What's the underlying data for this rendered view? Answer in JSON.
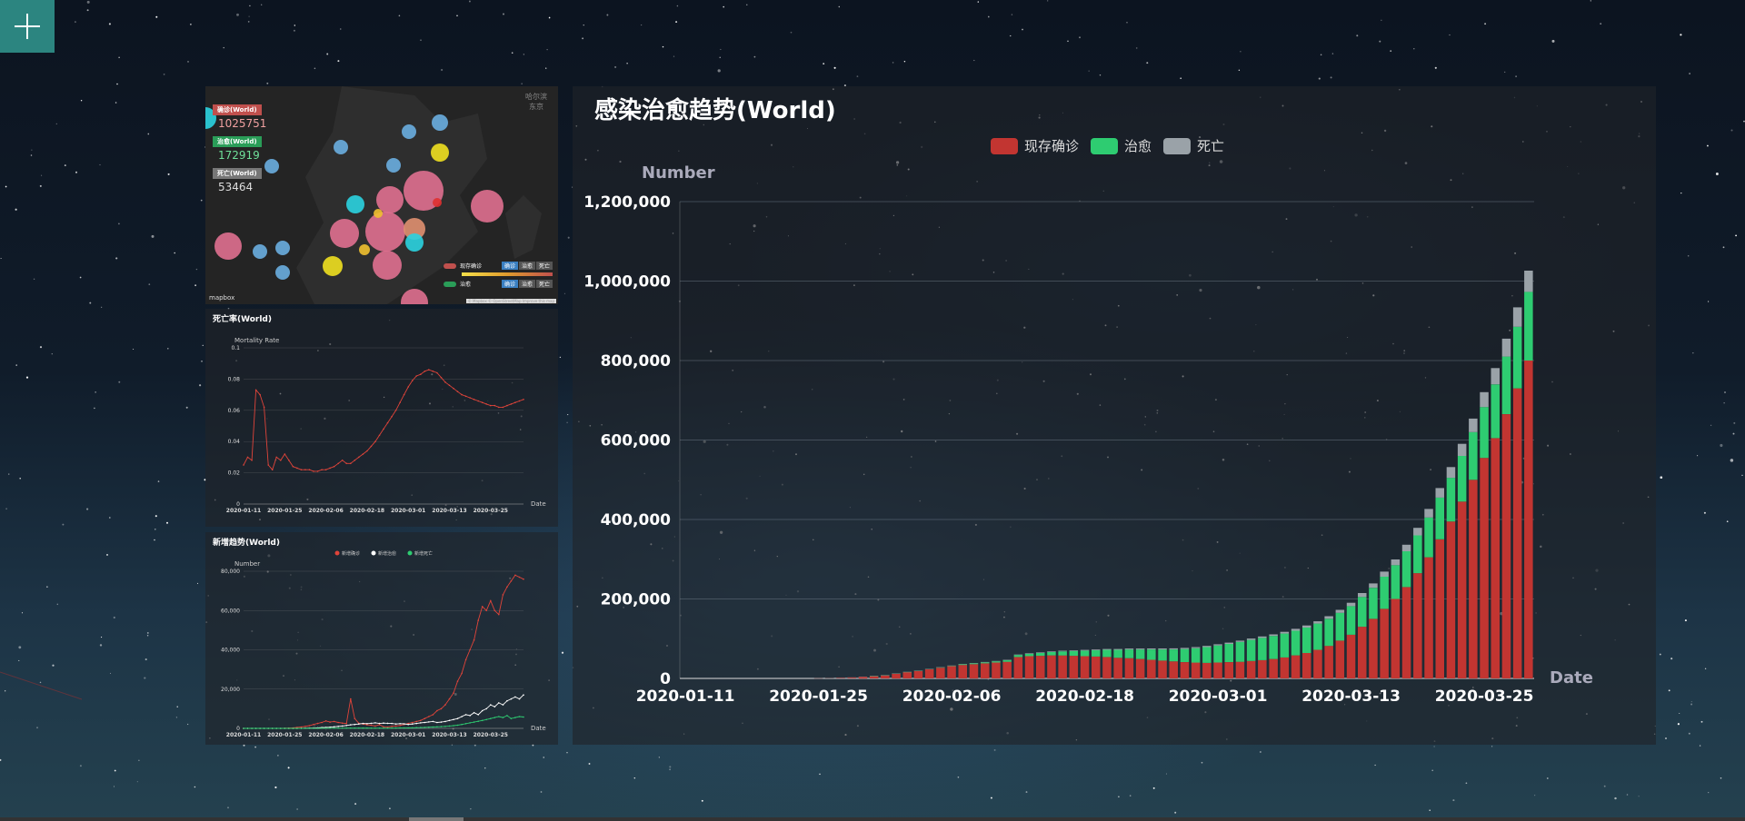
{
  "toolbar": {
    "add_icon": "plus-icon"
  },
  "map": {
    "confirmed_label": "确诊(World)",
    "confirmed_value": "1025751",
    "recovered_label": "治愈(World)",
    "recovered_value": "172919",
    "deaths_label": "死亡(World)",
    "deaths_value": "53464",
    "corner_text": [
      "哈尔滨",
      "东京"
    ],
    "attribution": "mapbox",
    "credits": "© Mapbox © OpenStreetMap  Improve this map",
    "legend_labels": [
      "现存确诊",
      "治愈",
      "死亡"
    ],
    "legend_buttons": [
      "确诊",
      "治愈",
      "死亡"
    ],
    "colors": {
      "confirmed": "#c0504d",
      "recovered": "#2a9d58",
      "deaths": "#9aa2a8"
    }
  },
  "mortality": {
    "title": "死亡率(World)",
    "chart_data": {
      "type": "line",
      "ylabel": "Mortality Rate",
      "xlabel": "Date",
      "ylim": [
        0,
        0.1
      ],
      "y_ticks": [
        "0",
        "0.02",
        "0.04",
        "0.06",
        "0.08",
        "0.1"
      ],
      "x_ticks": [
        "2020-01-11",
        "2020-01-25",
        "2020-02-06",
        "2020-02-18",
        "2020-03-01",
        "2020-03-13",
        "2020-03-25"
      ],
      "color": "#e0443a",
      "values": [
        0.025,
        0.03,
        0.028,
        0.073,
        0.07,
        0.062,
        0.025,
        0.022,
        0.03,
        0.028,
        0.032,
        0.028,
        0.024,
        0.023,
        0.022,
        0.022,
        0.022,
        0.021,
        0.021,
        0.022,
        0.022,
        0.023,
        0.024,
        0.026,
        0.028,
        0.026,
        0.026,
        0.028,
        0.03,
        0.032,
        0.034,
        0.037,
        0.04,
        0.044,
        0.048,
        0.052,
        0.056,
        0.06,
        0.065,
        0.07,
        0.075,
        0.079,
        0.082,
        0.083,
        0.085,
        0.086,
        0.085,
        0.084,
        0.081,
        0.078,
        0.076,
        0.074,
        0.072,
        0.07,
        0.069,
        0.068,
        0.067,
        0.066,
        0.065,
        0.064,
        0.063,
        0.063,
        0.062,
        0.062,
        0.063,
        0.064,
        0.065,
        0.066,
        0.067
      ]
    }
  },
  "new_trend": {
    "title": "新增趋势(World)",
    "chart_data": {
      "type": "line",
      "ylabel": "Number",
      "xlabel": "Date",
      "ylim": [
        0,
        80000
      ],
      "y_ticks": [
        "0",
        "20,000",
        "40,000",
        "60,000",
        "80,000"
      ],
      "x_ticks": [
        "2020-01-11",
        "2020-01-25",
        "2020-02-06",
        "2020-02-18",
        "2020-03-01",
        "2020-03-13",
        "2020-03-25"
      ],
      "series": [
        {
          "name": "新增确诊",
          "color": "#e0443a",
          "values": [
            0,
            0,
            0,
            0,
            0,
            0,
            0,
            0,
            0,
            0,
            100,
            150,
            250,
            500,
            700,
            1000,
            1400,
            2000,
            2500,
            3000,
            3800,
            3200,
            3500,
            3000,
            2700,
            2500,
            15000,
            5000,
            2600,
            2200,
            1800,
            1600,
            1200,
            1900,
            800,
            600,
            1000,
            1200,
            1500,
            2000,
            2500,
            3000,
            3500,
            4000,
            5000,
            6000,
            7000,
            9000,
            10000,
            12000,
            15000,
            18000,
            24000,
            28000,
            35000,
            40000,
            45000,
            55000,
            62000,
            60000,
            65000,
            60000,
            58000,
            68000,
            72000,
            75000,
            78000,
            77000,
            76000
          ]
        },
        {
          "name": "新增治愈",
          "color": "#ffffff",
          "values": [
            0,
            0,
            0,
            0,
            0,
            0,
            0,
            0,
            0,
            0,
            0,
            0,
            0,
            20,
            50,
            100,
            150,
            200,
            300,
            400,
            500,
            600,
            800,
            1000,
            1200,
            1500,
            1800,
            2000,
            2200,
            2500,
            2400,
            2600,
            2800,
            2500,
            2700,
            2600,
            2500,
            2200,
            2400,
            2300,
            2000,
            2200,
            2500,
            2800,
            3000,
            3300,
            3500,
            3000,
            3200,
            3500,
            4000,
            4500,
            5000,
            6000,
            7000,
            6500,
            8000,
            7000,
            9000,
            10000,
            12000,
            11000,
            13000,
            12000,
            14000,
            15000,
            16000,
            15000,
            17000
          ]
        },
        {
          "name": "新增死亡",
          "color": "#2ecc71",
          "values": [
            0,
            0,
            0,
            0,
            0,
            0,
            0,
            0,
            0,
            0,
            0,
            0,
            0,
            10,
            20,
            30,
            40,
            50,
            60,
            70,
            80,
            90,
            100,
            110,
            100,
            120,
            140,
            150,
            140,
            130,
            120,
            110,
            100,
            90,
            80,
            100,
            120,
            150,
            180,
            200,
            250,
            300,
            350,
            400,
            500,
            600,
            700,
            800,
            900,
            1000,
            1200,
            1400,
            1600,
            2000,
            2400,
            2800,
            3200,
            3600,
            4000,
            4500,
            5000,
            5500,
            6000,
            5500,
            6500,
            5000,
            5500,
            6000,
            5800
          ]
        }
      ]
    }
  },
  "main": {
    "title": "感染治愈趋势(World)",
    "chart_data": {
      "type": "bar",
      "stacked": true,
      "ylabel": "Number",
      "xlabel": "Date",
      "ylim": [
        0,
        1200000
      ],
      "y_ticks": [
        "0",
        "200,000",
        "400,000",
        "600,000",
        "800,000",
        "1,000,000",
        "1,200,000"
      ],
      "x_ticks": [
        "2020-01-11",
        "2020-01-25",
        "2020-02-06",
        "2020-02-18",
        "2020-03-01",
        "2020-03-13",
        "2020-03-25"
      ],
      "legend_position": "top-center",
      "grid": true,
      "series": [
        {
          "name": "现存确诊",
          "color": "#c23531",
          "values": [
            0,
            0,
            0,
            0,
            0,
            0,
            0,
            0,
            0,
            0,
            0,
            0,
            500,
            900,
            1500,
            2500,
            4000,
            6000,
            8000,
            12000,
            16000,
            19000,
            23000,
            27000,
            31000,
            34000,
            36000,
            38000,
            40000,
            42000,
            54000,
            56000,
            57000,
            58000,
            58000,
            57000,
            56000,
            55000,
            54000,
            52000,
            51000,
            49000,
            47000,
            45000,
            43000,
            41000,
            40000,
            39000,
            40000,
            41000,
            42000,
            44000,
            46000,
            49000,
            53000,
            58000,
            64000,
            72000,
            82000,
            95000,
            110000,
            130000,
            150000,
            175000,
            200000,
            230000,
            265000,
            305000,
            350000,
            395000,
            445000,
            500000,
            555000,
            605000,
            665000,
            730000,
            800000
          ]
        },
        {
          "name": "治愈",
          "color": "#2ecc71",
          "values": [
            0,
            0,
            0,
            0,
            0,
            0,
            0,
            0,
            0,
            0,
            0,
            0,
            0,
            0,
            0,
            0,
            0,
            20,
            50,
            100,
            200,
            400,
            600,
            800,
            1000,
            1500,
            2000,
            2500,
            3000,
            4000,
            5000,
            6000,
            7000,
            8500,
            10000,
            12000,
            14000,
            16000,
            18000,
            20000,
            22000,
            24000,
            26000,
            28000,
            30000,
            33000,
            36000,
            40000,
            43000,
            46000,
            50000,
            53000,
            56000,
            58000,
            60000,
            62000,
            64000,
            66000,
            68000,
            70000,
            72000,
            75000,
            78000,
            81000,
            85000,
            90000,
            95000,
            100000,
            105000,
            110000,
            115000,
            120000,
            128000,
            135000,
            145000,
            155000,
            172919
          ]
        },
        {
          "name": "死亡",
          "color": "#9aa2a8",
          "values": [
            0,
            0,
            0,
            0,
            0,
            0,
            0,
            0,
            0,
            0,
            0,
            0,
            10,
            20,
            30,
            50,
            80,
            120,
            160,
            200,
            260,
            320,
            400,
            480,
            560,
            640,
            720,
            800,
            900,
            1000,
            1100,
            1300,
            1400,
            1500,
            1600,
            1700,
            1800,
            1900,
            2000,
            2100,
            2200,
            2300,
            2400,
            2500,
            2600,
            2700,
            2800,
            2900,
            3000,
            3100,
            3200,
            3400,
            3600,
            3900,
            4300,
            4700,
            5200,
            5800,
            6500,
            7500,
            8500,
            9800,
            11000,
            12800,
            14500,
            16500,
            19000,
            21500,
            24000,
            27000,
            30500,
            34000,
            37500,
            41000,
            45000,
            49000,
            53464
          ]
        }
      ]
    }
  }
}
